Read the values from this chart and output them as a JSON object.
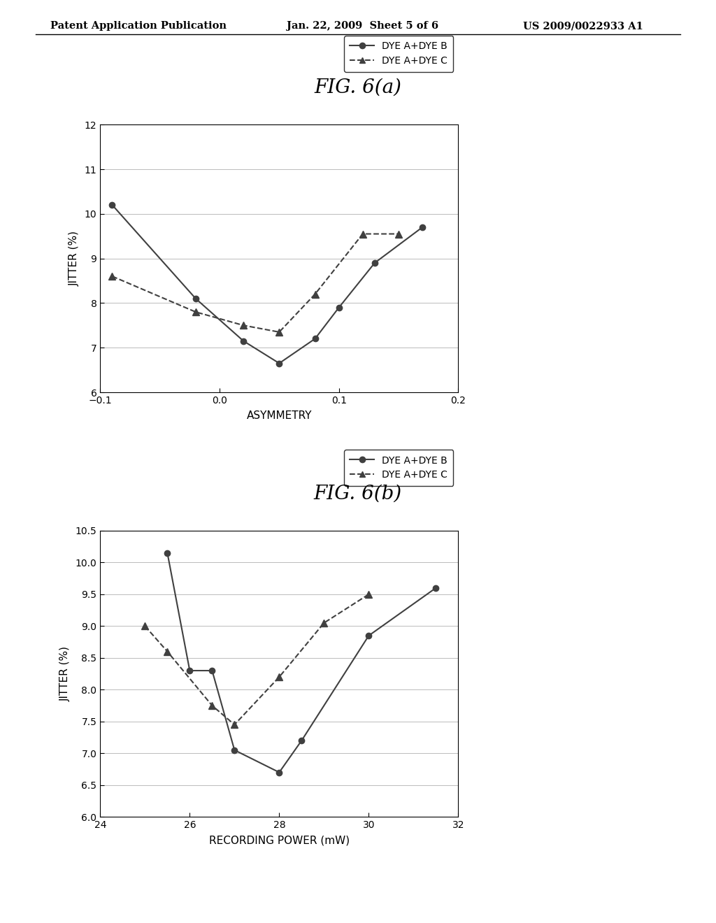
{
  "header_left": "Patent Application Publication",
  "header_mid": "Jan. 22, 2009  Sheet 5 of 6",
  "header_right": "US 2009/0022933 A1",
  "fig_a_title": "FIG. 6(a)",
  "fig_a_xlabel": "ASYMMETRY",
  "fig_a_ylabel": "JITTER (%)",
  "fig_a_xlim": [
    -0.1,
    0.2
  ],
  "fig_a_ylim": [
    6,
    12
  ],
  "fig_a_xticks": [
    -0.1,
    0,
    0.1,
    0.2
  ],
  "fig_a_yticks": [
    6,
    7,
    8,
    9,
    10,
    11,
    12
  ],
  "fig_a_series1_x": [
    -0.09,
    -0.02,
    0.02,
    0.05,
    0.08,
    0.1,
    0.13,
    0.17
  ],
  "fig_a_series1_y": [
    10.2,
    8.1,
    7.15,
    6.65,
    7.2,
    7.9,
    8.9,
    9.7
  ],
  "fig_a_series2_x": [
    -0.09,
    -0.02,
    0.02,
    0.05,
    0.08,
    0.12,
    0.15
  ],
  "fig_a_series2_y": [
    8.6,
    7.8,
    7.5,
    7.35,
    8.2,
    9.55,
    9.55
  ],
  "fig_b_title": "FIG. 6(b)",
  "fig_b_xlabel": "RECORDING POWER (mW)",
  "fig_b_ylabel": "JITTER (%)",
  "fig_b_xlim": [
    24,
    32
  ],
  "fig_b_ylim": [
    6,
    10.5
  ],
  "fig_b_xticks": [
    24,
    26,
    28,
    30,
    32
  ],
  "fig_b_yticks": [
    6,
    6.5,
    7,
    7.5,
    8,
    8.5,
    9,
    9.5,
    10,
    10.5
  ],
  "fig_b_series1_x": [
    25.5,
    26.0,
    26.5,
    27.0,
    28.0,
    28.5,
    30.0,
    31.5
  ],
  "fig_b_series1_y": [
    10.15,
    8.3,
    8.3,
    7.05,
    6.7,
    7.2,
    8.85,
    9.6
  ],
  "fig_b_series2_x": [
    25.0,
    25.5,
    26.5,
    27.0,
    28.0,
    29.0,
    30.0
  ],
  "fig_b_series2_y": [
    9.0,
    8.6,
    7.75,
    7.45,
    8.2,
    9.05,
    9.5
  ],
  "legend1": "DYE A+DYE B",
  "legend2": "DYE A+DYE C",
  "line1_color": "#404040",
  "bg_color": "#ffffff",
  "text_color": "#000000"
}
